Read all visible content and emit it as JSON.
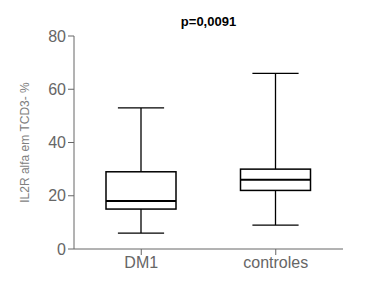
{
  "chart_data": {
    "type": "box",
    "categories": [
      "DM1",
      "controles"
    ],
    "whisker_low": [
      6,
      9
    ],
    "q1": [
      15,
      22
    ],
    "median": [
      18,
      26
    ],
    "q3": [
      29,
      30
    ],
    "whisker_high": [
      53,
      66
    ],
    "ylabel": "IL2R alfa em TCD3- %",
    "annotations": [
      {
        "text": "p=0,0091"
      }
    ],
    "ylim": [
      0,
      80
    ],
    "yticks": [
      0,
      20,
      40,
      60,
      80
    ],
    "color": "#000000",
    "grid": false
  }
}
